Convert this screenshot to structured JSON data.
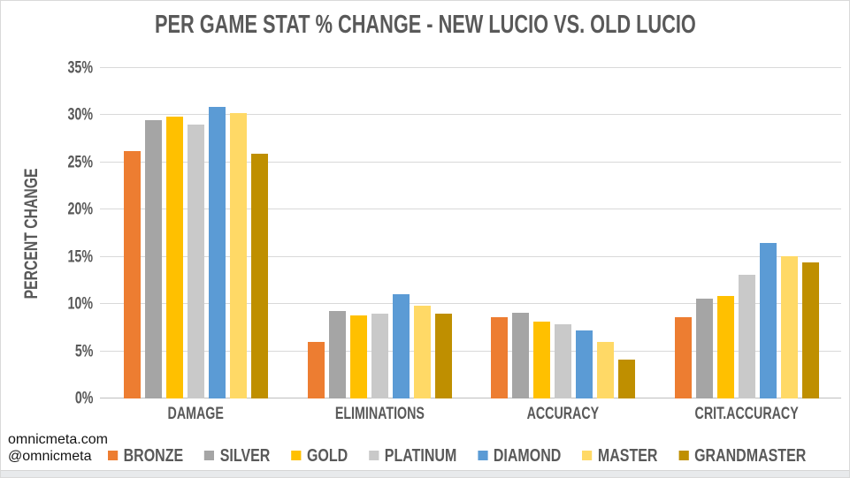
{
  "page": {
    "footer": {
      "line1": "omnicmeta.com",
      "line2": "@omnicmeta"
    }
  },
  "colors": {
    "label_gray": "#595959",
    "gridline": "#D9D9D9",
    "axis_line": "#BFBFBF",
    "background": "#FFFFFF"
  },
  "chart_data": {
    "type": "bar",
    "title": "PER GAME STAT % CHANGE - NEW LUCIO VS. OLD LUCIO",
    "xlabel": "",
    "ylabel": "PERCENT CHANGE",
    "ylim": [
      0,
      35
    ],
    "yticks": [
      "0%",
      "5%",
      "10%",
      "15%",
      "20%",
      "25%",
      "30%",
      "35%"
    ],
    "grid": true,
    "legend_position": "bottom",
    "categories": [
      "DAMAGE",
      "ELIMINATIONS",
      "ACCURACY",
      "CRIT.ACCURACY"
    ],
    "series": [
      {
        "name": "BRONZE",
        "color": "#ED7D31",
        "values": [
          26.2,
          6.0,
          8.6,
          8.6
        ]
      },
      {
        "name": "SILVER",
        "color": "#A5A5A5",
        "values": [
          29.5,
          9.3,
          9.1,
          10.6
        ]
      },
      {
        "name": "GOLD",
        "color": "#FFC000",
        "values": [
          29.9,
          8.8,
          8.1,
          10.9
        ]
      },
      {
        "name": "PLATINUM",
        "color": "#C9C9C9",
        "values": [
          29.0,
          9.0,
          7.9,
          13.1
        ]
      },
      {
        "name": "DIAMOND",
        "color": "#5B9BD5",
        "values": [
          30.9,
          11.0,
          7.2,
          16.5
        ]
      },
      {
        "name": "MASTER",
        "color": "#FFD966",
        "values": [
          30.2,
          9.8,
          6.0,
          15.1
        ]
      },
      {
        "name": "GRANDMASTER",
        "color": "#BF8F00",
        "values": [
          25.9,
          9.0,
          4.1,
          14.4
        ]
      }
    ]
  }
}
